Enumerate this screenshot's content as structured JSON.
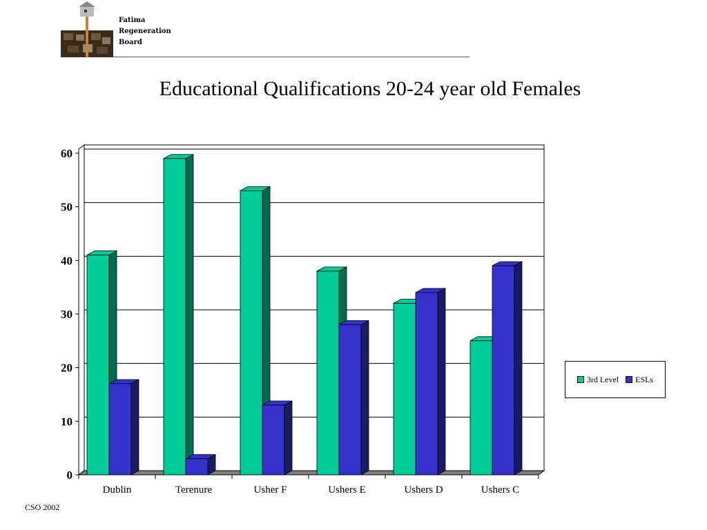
{
  "header": {
    "org_lines": [
      "Fatima",
      "Regeneration",
      "Board"
    ]
  },
  "footer": {
    "source": "CSO 2002"
  },
  "colors": {
    "series_3rd_level": "#00cc99",
    "series_3rd_level_side": "#006b50",
    "series_esls": "#3333cc",
    "series_esls_side": "#1a1a66",
    "floor": "#808080"
  },
  "chart_data": {
    "type": "bar",
    "style": "3d-clustered",
    "title": "Educational Qualifications 20-24 year old Females",
    "xlabel": "",
    "ylabel": "",
    "ylim": [
      0,
      60
    ],
    "yticks": [
      0,
      10,
      20,
      30,
      40,
      50,
      60
    ],
    "grid": true,
    "legend_position": "right",
    "categories": [
      "Dublin",
      "Terenure",
      "Usher F",
      "Ushers E",
      "Ushers D",
      "Ushers C"
    ],
    "series": [
      {
        "name": "3rd Level",
        "values": [
          41,
          59,
          53,
          38,
          32,
          25
        ]
      },
      {
        "name": "ESLs",
        "values": [
          17,
          3,
          13,
          28,
          34,
          39
        ]
      }
    ]
  }
}
